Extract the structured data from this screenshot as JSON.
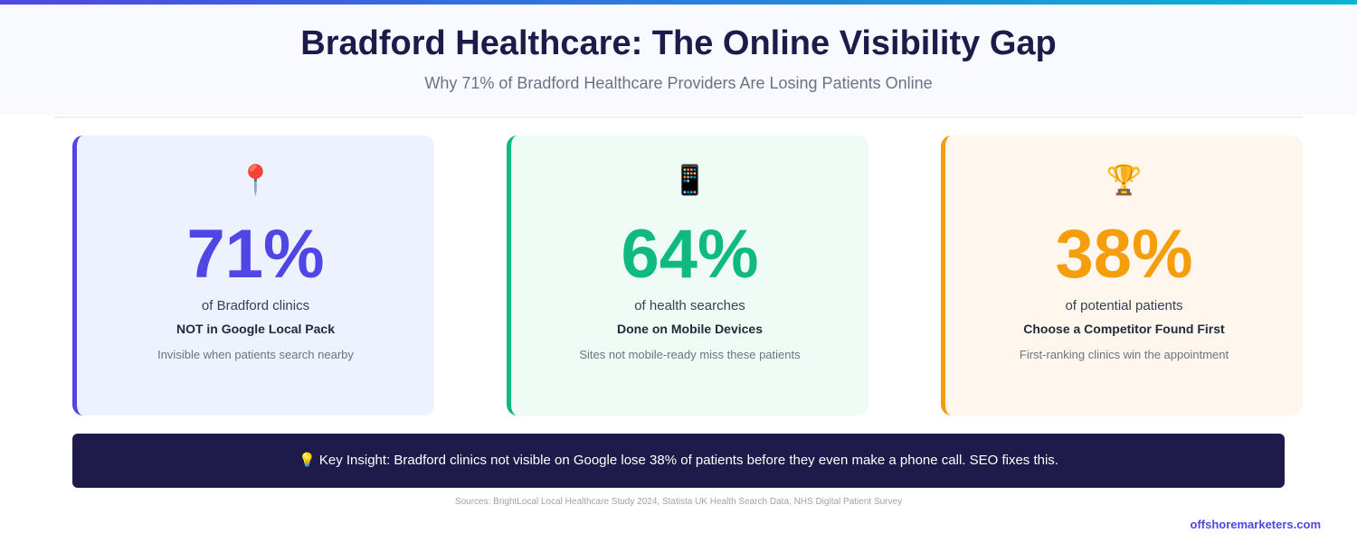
{
  "header": {
    "title": "Bradford Healthcare: The Online Visibility Gap",
    "subtitle": "Why 71% of Bradford Healthcare Providers Are Losing Patients Online"
  },
  "cards": [
    {
      "icon": "📍",
      "icon_name": "round-pushpin-icon",
      "value": "71%",
      "label": "of Bradford clinics",
      "highlight": "NOT in Google Local Pack",
      "note": "Invisible when patients search nearby",
      "color": "#4f46e5",
      "bg": "#eef2ff"
    },
    {
      "icon": "📱",
      "icon_name": "mobile-phone-icon",
      "value": "64%",
      "label": "of health searches",
      "highlight": "Done on Mobile Devices",
      "note": "Sites not mobile-ready miss these patients",
      "color": "#10b981",
      "bg": "#effcf5"
    },
    {
      "icon": "🏆",
      "icon_name": "trophy-icon",
      "value": "38%",
      "label": "of potential patients",
      "highlight": "Choose a Competitor Found First",
      "note": "First-ranking clinics win the appointment",
      "color": "#f59e0b",
      "bg": "#fff7ee"
    }
  ],
  "insight": {
    "icon": "💡",
    "text": "Key Insight: Bradford clinics not visible on Google lose 38% of patients before they even make a phone call. SEO fixes this."
  },
  "sources": "Sources: BrightLocal Local Healthcare Study 2024, Statista UK Health Search Data, NHS Digital Patient Survey",
  "footer": "offshoremarketers.com"
}
